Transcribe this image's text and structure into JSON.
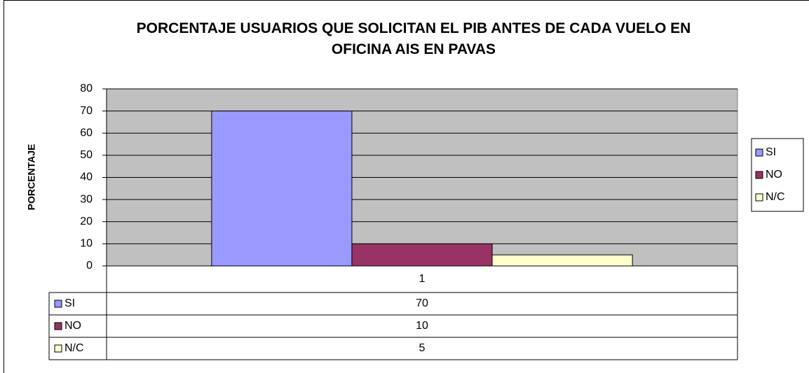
{
  "chart_data": {
    "type": "bar",
    "title": "PORCENTAJE USUARIOS QUE SOLICITAN EL PIB ANTES DE CADA VUELO EN OFICINA AIS EN PAVAS",
    "y_label": "PORCENTAJE",
    "categories": [
      "1"
    ],
    "series": [
      {
        "name": "SI",
        "color": "#9999ff",
        "values": [
          70
        ]
      },
      {
        "name": "NO",
        "color": "#993366",
        "values": [
          10
        ]
      },
      {
        "name": "N/C",
        "color": "#ffffcc",
        "values": [
          5
        ]
      }
    ],
    "ylim": [
      0,
      80
    ],
    "yticks": [
      0,
      10,
      20,
      30,
      40,
      50,
      60,
      70,
      80
    ],
    "grid": true,
    "legend": "right",
    "data_table": true
  }
}
